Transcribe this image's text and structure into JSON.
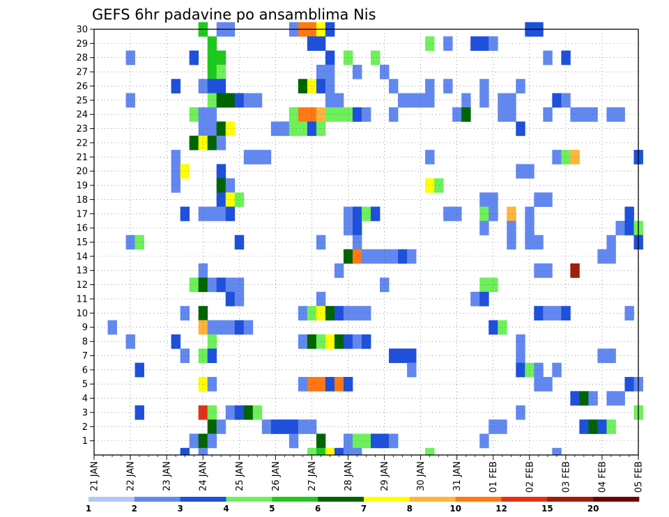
{
  "chart_data": {
    "type": "heatmap",
    "title": "GEFS 6hr padavine po ansamblima Nis",
    "xlabel": "",
    "ylabel": "",
    "y_range": [
      0,
      30
    ],
    "y_ticks": [
      1,
      2,
      3,
      4,
      5,
      6,
      7,
      8,
      9,
      10,
      11,
      12,
      13,
      14,
      15,
      16,
      17,
      18,
      19,
      20,
      21,
      22,
      23,
      24,
      25,
      26,
      27,
      28,
      29,
      30
    ],
    "x_ticks": [
      "21 JAN",
      "22 JAN",
      "23 JAN",
      "24 JAN",
      "25 JAN",
      "26 JAN",
      "27 JAN",
      "28 JAN",
      "29 JAN",
      "30 JAN",
      "31 JAN",
      "01 FEB",
      "02 FEB",
      "03 FEB",
      "04 FEB",
      "05 FEB"
    ],
    "x_steps_per_day": 4,
    "grid": true,
    "legend_position": "bottom",
    "colorbar": {
      "labels": [
        "1",
        "2",
        "3",
        "4",
        "5",
        "6",
        "7",
        "8",
        "10",
        "12",
        "15",
        "20"
      ],
      "colors": [
        "#b4c6f8",
        "#6288f0",
        "#1e50dc",
        "#6ef05a",
        "#1ec81e",
        "#006400",
        "#ffff00",
        "#ffb43c",
        "#ff7814",
        "#e13214",
        "#a01e0a",
        "#6e0000"
      ]
    },
    "cells": [
      [
        30,
        24,
        4
      ],
      [
        30,
        24.5,
        1
      ],
      [
        30,
        24.75,
        1
      ],
      [
        30,
        26.5,
        1
      ],
      [
        30,
        26.75,
        8
      ],
      [
        30,
        27,
        8
      ],
      [
        30,
        27.25,
        6
      ],
      [
        30,
        27.5,
        2
      ],
      [
        30,
        33,
        2
      ],
      [
        30,
        33.25,
        2
      ],
      [
        29,
        24.25,
        4
      ],
      [
        29,
        27,
        2
      ],
      [
        29,
        27.25,
        2
      ],
      [
        29,
        30.25,
        3
      ],
      [
        29,
        30.75,
        1
      ],
      [
        29,
        31.5,
        2
      ],
      [
        29,
        31.75,
        2
      ],
      [
        29,
        32,
        1
      ],
      [
        28,
        22,
        1
      ],
      [
        28,
        23.75,
        2
      ],
      [
        28,
        24.25,
        4
      ],
      [
        28,
        24.5,
        4
      ],
      [
        28,
        27.5,
        2
      ],
      [
        28,
        28,
        3
      ],
      [
        28,
        28.75,
        3
      ],
      [
        28,
        33.5,
        1
      ],
      [
        28,
        34,
        2
      ],
      [
        27,
        24.25,
        4
      ],
      [
        27,
        24.5,
        3
      ],
      [
        27,
        27.25,
        1
      ],
      [
        27,
        27.5,
        1
      ],
      [
        27,
        28.25,
        1
      ],
      [
        27,
        29,
        1
      ],
      [
        26,
        23.25,
        2
      ],
      [
        26,
        24,
        1
      ],
      [
        26,
        24.25,
        2
      ],
      [
        26,
        24.5,
        2
      ],
      [
        26,
        26.75,
        5
      ],
      [
        26,
        27,
        6
      ],
      [
        26,
        27.25,
        2
      ],
      [
        26,
        27.5,
        1
      ],
      [
        26,
        29.25,
        1
      ],
      [
        26,
        30.25,
        1
      ],
      [
        26,
        30.75,
        1
      ],
      [
        26,
        31.75,
        1
      ],
      [
        26,
        32.75,
        1
      ],
      [
        25,
        22,
        1
      ],
      [
        25,
        24.25,
        3
      ],
      [
        25,
        24.5,
        5
      ],
      [
        25,
        24.75,
        5
      ],
      [
        25,
        25,
        2
      ],
      [
        25,
        25.25,
        1
      ],
      [
        25,
        25.5,
        1
      ],
      [
        25,
        27.5,
        1
      ],
      [
        25,
        27.75,
        1
      ],
      [
        25,
        29.5,
        1
      ],
      [
        25,
        29.75,
        1
      ],
      [
        25,
        30,
        1
      ],
      [
        25,
        30.25,
        1
      ],
      [
        25,
        31.25,
        1
      ],
      [
        25,
        31.75,
        1
      ],
      [
        25,
        32.25,
        1
      ],
      [
        25,
        32.5,
        1
      ],
      [
        25,
        33.75,
        2
      ],
      [
        25,
        34,
        1
      ],
      [
        24,
        23.75,
        3
      ],
      [
        24,
        24,
        1
      ],
      [
        24,
        24.25,
        1
      ],
      [
        24,
        26.5,
        3
      ],
      [
        24,
        26.75,
        8
      ],
      [
        24,
        27,
        8
      ],
      [
        24,
        27.25,
        7
      ],
      [
        24,
        27.5,
        3
      ],
      [
        24,
        27.75,
        3
      ],
      [
        24,
        28,
        3
      ],
      [
        24,
        28.25,
        2
      ],
      [
        24,
        28.5,
        1
      ],
      [
        24,
        29.25,
        1
      ],
      [
        24,
        31,
        1
      ],
      [
        24,
        31.25,
        5
      ],
      [
        24,
        32.25,
        1
      ],
      [
        24,
        32.5,
        1
      ],
      [
        24,
        33.5,
        1
      ],
      [
        24,
        34.25,
        1
      ],
      [
        24,
        34.5,
        1
      ],
      [
        24,
        34.75,
        1
      ],
      [
        24,
        35.25,
        1
      ],
      [
        24,
        35.5,
        1
      ],
      [
        23,
        24,
        1
      ],
      [
        23,
        24.25,
        1
      ],
      [
        23,
        24.5,
        5
      ],
      [
        23,
        24.75,
        6
      ],
      [
        23,
        26,
        1
      ],
      [
        23,
        26.25,
        1
      ],
      [
        23,
        26.5,
        3
      ],
      [
        23,
        26.75,
        3
      ],
      [
        23,
        27,
        2
      ],
      [
        23,
        27.25,
        3
      ],
      [
        23,
        32.75,
        2
      ],
      [
        22,
        23.75,
        5
      ],
      [
        22,
        24,
        6
      ],
      [
        22,
        24.25,
        5
      ],
      [
        22,
        24.5,
        1
      ],
      [
        21,
        23.25,
        1
      ],
      [
        21,
        25.25,
        1
      ],
      [
        21,
        25.5,
        1
      ],
      [
        21,
        25.75,
        1
      ],
      [
        21,
        30.25,
        1
      ],
      [
        21,
        33.75,
        1
      ],
      [
        21,
        34,
        3
      ],
      [
        21,
        34.25,
        7
      ],
      [
        21,
        36,
        2
      ],
      [
        20,
        23.25,
        1
      ],
      [
        20,
        23.5,
        6
      ],
      [
        20,
        24.5,
        2
      ],
      [
        20,
        32.75,
        1
      ],
      [
        20,
        33,
        1
      ],
      [
        19,
        23.25,
        1
      ],
      [
        19,
        24.5,
        5
      ],
      [
        19,
        24.75,
        1
      ],
      [
        19,
        30.25,
        6
      ],
      [
        19,
        30.5,
        3
      ],
      [
        18,
        24.5,
        2
      ],
      [
        18,
        24.75,
        6
      ],
      [
        18,
        25,
        3
      ],
      [
        18,
        31.75,
        1
      ],
      [
        18,
        32,
        1
      ],
      [
        18,
        33.25,
        1
      ],
      [
        18,
        33.5,
        1
      ],
      [
        17,
        23.5,
        2
      ],
      [
        17,
        24,
        1
      ],
      [
        17,
        24.25,
        1
      ],
      [
        17,
        24.5,
        1
      ],
      [
        17,
        24.75,
        2
      ],
      [
        17,
        28,
        1
      ],
      [
        17,
        28.25,
        2
      ],
      [
        17,
        28.5,
        3
      ],
      [
        17,
        28.75,
        2
      ],
      [
        17,
        30.75,
        1
      ],
      [
        17,
        31,
        1
      ],
      [
        17,
        31.75,
        3
      ],
      [
        17,
        32,
        1
      ],
      [
        17,
        32.5,
        7
      ],
      [
        17,
        33,
        1
      ],
      [
        17,
        35.75,
        2
      ],
      [
        16,
        28,
        1
      ],
      [
        16,
        28.25,
        2
      ],
      [
        16,
        31.75,
        1
      ],
      [
        16,
        32.5,
        1
      ],
      [
        16,
        33,
        1
      ],
      [
        16,
        35.5,
        1
      ],
      [
        16,
        35.75,
        2
      ],
      [
        16,
        36,
        3
      ],
      [
        15,
        22,
        1
      ],
      [
        15,
        22.25,
        3
      ],
      [
        15,
        25,
        2
      ],
      [
        15,
        27.25,
        1
      ],
      [
        15,
        28.25,
        1
      ],
      [
        15,
        32.5,
        1
      ],
      [
        15,
        33,
        1
      ],
      [
        15,
        33.25,
        1
      ],
      [
        15,
        35.25,
        1
      ],
      [
        15,
        36,
        2
      ],
      [
        14,
        28,
        5
      ],
      [
        14,
        28.25,
        8
      ],
      [
        14,
        28.5,
        1
      ],
      [
        14,
        28.75,
        1
      ],
      [
        14,
        29,
        1
      ],
      [
        14,
        29.25,
        1
      ],
      [
        14,
        29.5,
        2
      ],
      [
        14,
        29.75,
        1
      ],
      [
        14,
        35,
        1
      ],
      [
        14,
        35.25,
        1
      ],
      [
        13,
        24,
        1
      ],
      [
        13,
        27.75,
        1
      ],
      [
        13,
        33.25,
        1
      ],
      [
        13,
        33.5,
        1
      ],
      [
        13,
        34.25,
        10
      ],
      [
        12,
        23.75,
        3
      ],
      [
        12,
        24,
        5
      ],
      [
        12,
        24.25,
        1
      ],
      [
        12,
        24.5,
        2
      ],
      [
        12,
        24.75,
        1
      ],
      [
        12,
        25,
        1
      ],
      [
        12,
        29,
        1
      ],
      [
        12,
        31.75,
        3
      ],
      [
        12,
        32,
        3
      ],
      [
        11,
        24.75,
        2
      ],
      [
        11,
        25,
        1
      ],
      [
        11,
        27.25,
        1
      ],
      [
        11,
        31.5,
        1
      ],
      [
        11,
        31.75,
        2
      ],
      [
        10,
        23.5,
        1
      ],
      [
        10,
        24,
        5
      ],
      [
        10,
        26.75,
        1
      ],
      [
        10,
        27,
        3
      ],
      [
        10,
        27.25,
        6
      ],
      [
        10,
        27.5,
        5
      ],
      [
        10,
        27.75,
        2
      ],
      [
        10,
        28,
        1
      ],
      [
        10,
        28.25,
        1
      ],
      [
        10,
        28.5,
        1
      ],
      [
        10,
        33.25,
        2
      ],
      [
        10,
        33.5,
        1
      ],
      [
        10,
        33.75,
        1
      ],
      [
        10,
        34,
        2
      ],
      [
        10,
        35.75,
        1
      ],
      [
        9,
        21.5,
        1
      ],
      [
        9,
        24,
        7
      ],
      [
        9,
        24.25,
        1
      ],
      [
        9,
        24.5,
        1
      ],
      [
        9,
        24.75,
        1
      ],
      [
        9,
        25,
        2
      ],
      [
        9,
        25.25,
        1
      ],
      [
        9,
        32,
        2
      ],
      [
        9,
        32.25,
        3
      ],
      [
        8,
        22,
        1
      ],
      [
        8,
        23.25,
        2
      ],
      [
        8,
        24.25,
        3
      ],
      [
        8,
        26.75,
        1
      ],
      [
        8,
        27,
        5
      ],
      [
        8,
        27.25,
        3
      ],
      [
        8,
        27.5,
        6
      ],
      [
        8,
        27.75,
        5
      ],
      [
        8,
        28,
        2
      ],
      [
        8,
        28.25,
        1
      ],
      [
        8,
        28.5,
        2
      ],
      [
        8,
        32.75,
        1
      ],
      [
        7,
        23.5,
        1
      ],
      [
        7,
        24,
        3
      ],
      [
        7,
        24.25,
        2
      ],
      [
        7,
        29.25,
        2
      ],
      [
        7,
        29.5,
        2
      ],
      [
        7,
        29.75,
        2
      ],
      [
        7,
        32.75,
        1
      ],
      [
        7,
        35,
        1
      ],
      [
        7,
        35.25,
        1
      ],
      [
        6,
        22.25,
        2
      ],
      [
        6,
        29.75,
        1
      ],
      [
        6,
        32.75,
        2
      ],
      [
        6,
        33,
        3
      ],
      [
        6,
        33.25,
        1
      ],
      [
        6,
        33.75,
        1
      ],
      [
        5,
        24,
        6
      ],
      [
        5,
        24.25,
        1
      ],
      [
        5,
        26.75,
        1
      ],
      [
        5,
        27,
        8
      ],
      [
        5,
        27.25,
        8
      ],
      [
        5,
        27.5,
        2
      ],
      [
        5,
        27.75,
        8
      ],
      [
        5,
        28,
        2
      ],
      [
        5,
        33.25,
        1
      ],
      [
        5,
        33.5,
        1
      ],
      [
        5,
        35.75,
        2
      ],
      [
        5,
        36,
        1
      ],
      [
        4,
        34.25,
        2
      ],
      [
        4,
        34.5,
        5
      ],
      [
        4,
        34.75,
        1
      ],
      [
        4,
        35.25,
        1
      ],
      [
        4,
        35.5,
        1
      ],
      [
        3,
        22.25,
        2
      ],
      [
        3,
        24,
        9
      ],
      [
        3,
        24.25,
        3
      ],
      [
        3,
        24.75,
        1
      ],
      [
        3,
        25,
        2
      ],
      [
        3,
        25.25,
        5
      ],
      [
        3,
        25.5,
        3
      ],
      [
        3,
        32.75,
        1
      ],
      [
        3,
        36,
        3
      ],
      [
        2,
        24.25,
        5
      ],
      [
        2,
        24.5,
        1
      ],
      [
        2,
        25.75,
        1
      ],
      [
        2,
        26,
        2
      ],
      [
        2,
        26.25,
        2
      ],
      [
        2,
        26.5,
        2
      ],
      [
        2,
        26.75,
        1
      ],
      [
        2,
        27,
        1
      ],
      [
        2,
        32,
        1
      ],
      [
        2,
        32.25,
        1
      ],
      [
        2,
        34.5,
        2
      ],
      [
        2,
        34.75,
        5
      ],
      [
        2,
        35,
        2
      ],
      [
        2,
        35.25,
        3
      ],
      [
        1,
        23.75,
        1
      ],
      [
        1,
        24,
        5
      ],
      [
        1,
        24.25,
        1
      ],
      [
        1,
        26.5,
        1
      ],
      [
        1,
        27.25,
        5
      ],
      [
        1,
        28,
        1
      ],
      [
        1,
        28.25,
        3
      ],
      [
        1,
        28.5,
        3
      ],
      [
        1,
        28.75,
        2
      ],
      [
        1,
        29,
        2
      ],
      [
        1,
        29.25,
        1
      ],
      [
        1,
        31.75,
        1
      ],
      [
        0,
        23.5,
        2
      ],
      [
        0,
        24,
        1
      ],
      [
        0,
        27,
        3
      ],
      [
        0,
        27.25,
        4
      ],
      [
        0,
        27.5,
        6
      ],
      [
        0,
        27.75,
        2
      ],
      [
        0,
        28,
        1
      ],
      [
        0,
        28.25,
        1
      ],
      [
        0,
        30.25,
        3
      ],
      [
        0,
        33.75,
        1
      ]
    ]
  }
}
